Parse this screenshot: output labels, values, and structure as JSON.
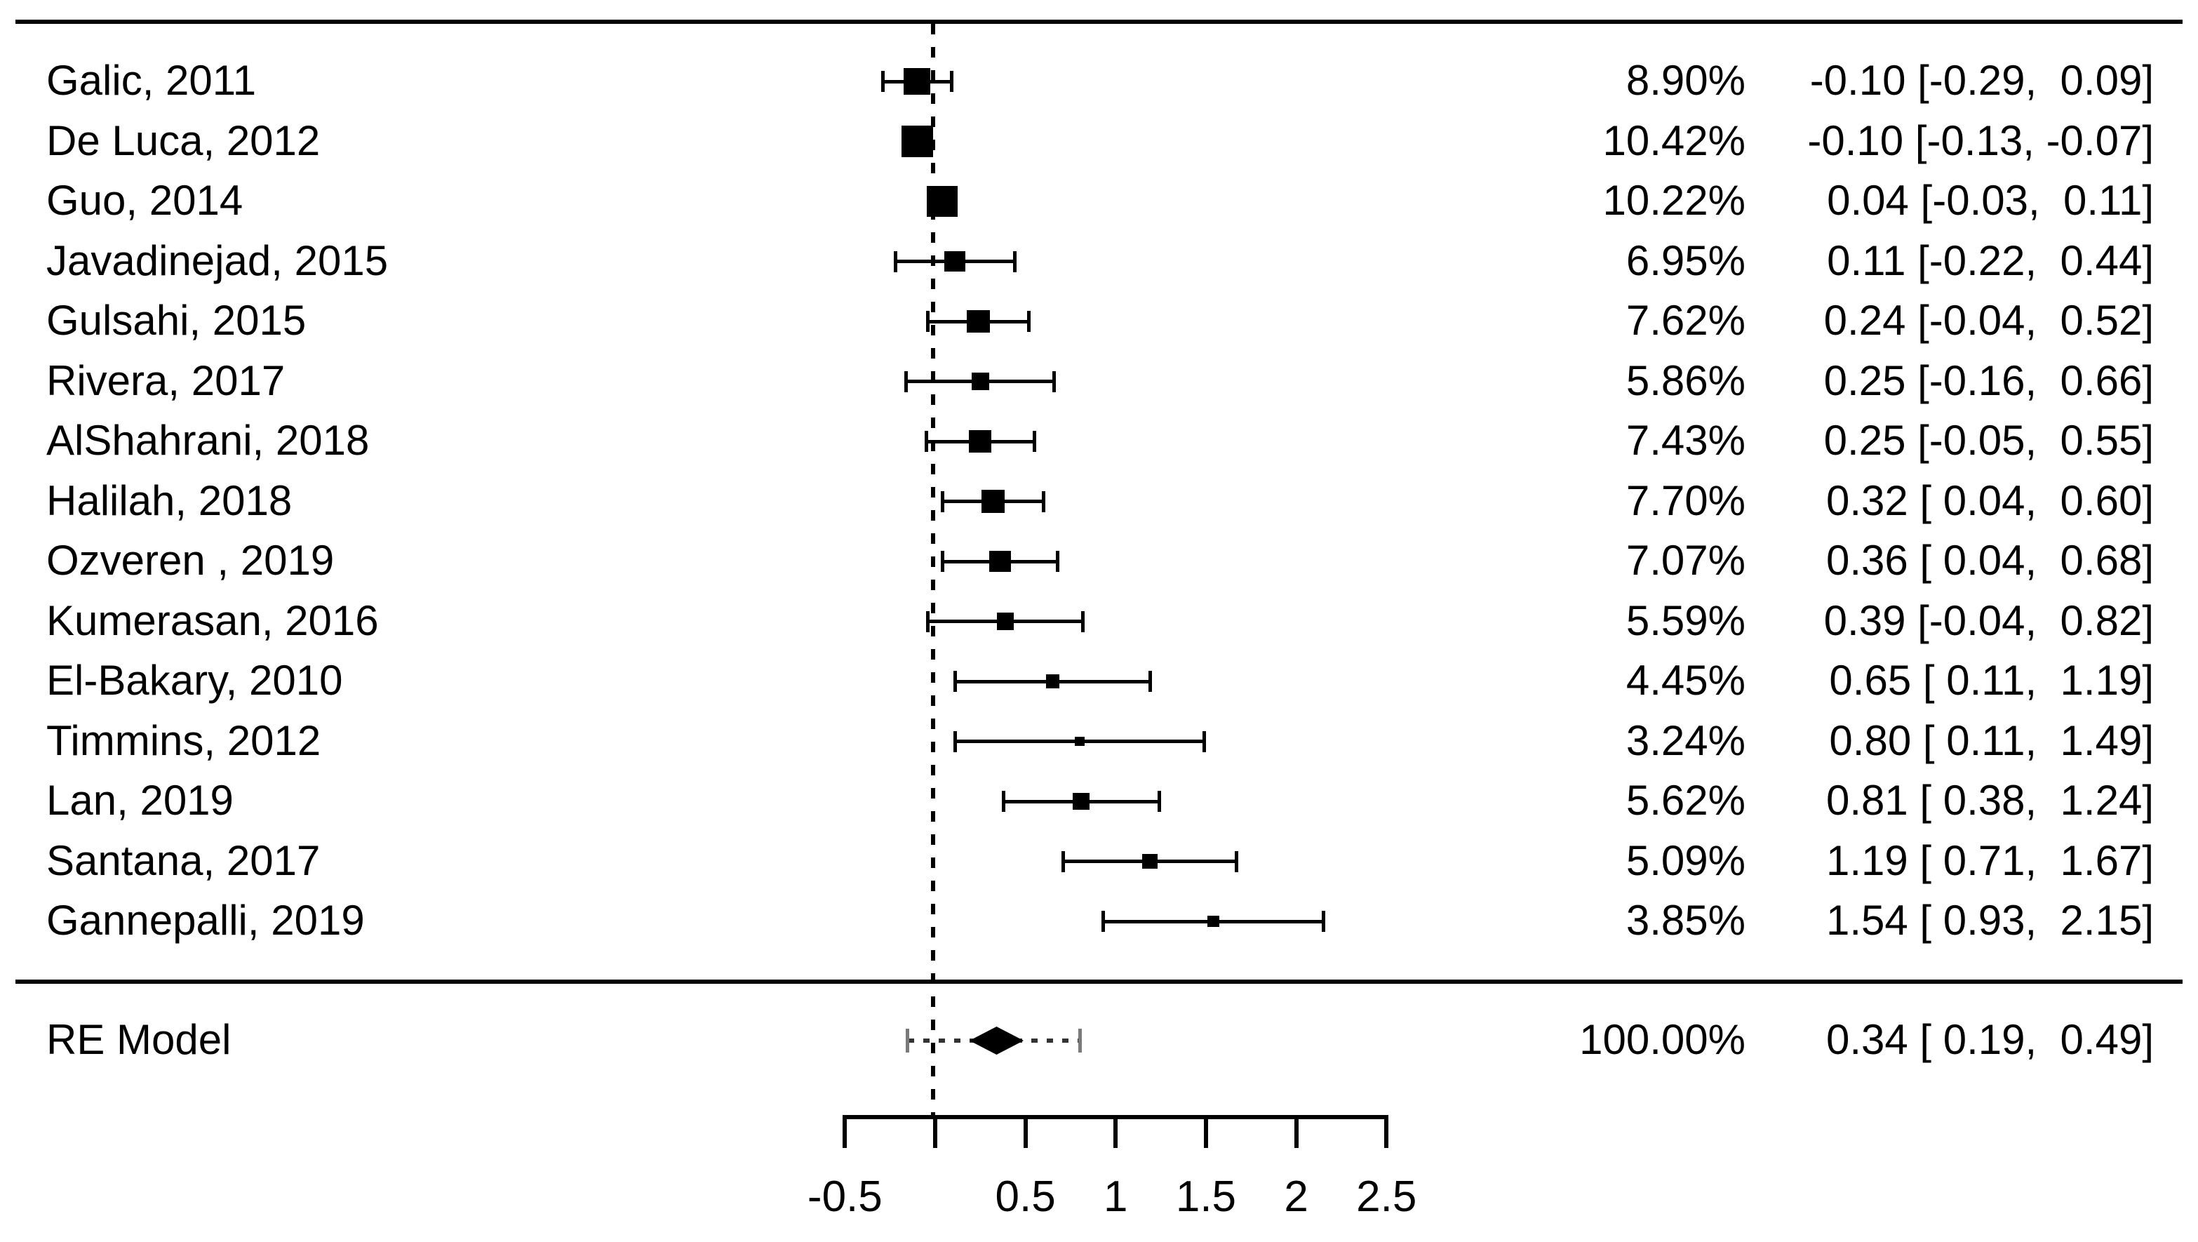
{
  "chart_data": {
    "type": "forest",
    "title": "",
    "x_axis": {
      "min": -0.5,
      "max": 2.5,
      "reference_line": 0,
      "ticks": [
        {
          "value": -0.5,
          "label": "-0.5"
        },
        {
          "value": 0,
          "label": ""
        },
        {
          "value": 0.5,
          "label": "0.5"
        },
        {
          "value": 1,
          "label": "1"
        },
        {
          "value": 1.5,
          "label": "1.5"
        },
        {
          "value": 2,
          "label": "2"
        },
        {
          "value": 2.5,
          "label": "2.5"
        }
      ]
    },
    "studies": [
      {
        "label": "Galic, 2011",
        "weight": "8.90%",
        "weight_value": 8.9,
        "estimate": -0.1,
        "ci_lower": -0.29,
        "ci_upper": 0.09,
        "estimate_label": "-0.10 [-0.29,  0.09]"
      },
      {
        "label": "De Luca, 2012",
        "weight": "10.42%",
        "weight_value": 10.42,
        "estimate": -0.1,
        "ci_lower": -0.13,
        "ci_upper": -0.07,
        "estimate_label": "-0.10 [-0.13, -0.07]"
      },
      {
        "label": "Guo, 2014",
        "weight": "10.22%",
        "weight_value": 10.22,
        "estimate": 0.04,
        "ci_lower": -0.03,
        "ci_upper": 0.11,
        "estimate_label": "0.04 [-0.03,  0.11]"
      },
      {
        "label": "Javadinejad, 2015",
        "weight": "6.95%",
        "weight_value": 6.95,
        "estimate": 0.11,
        "ci_lower": -0.22,
        "ci_upper": 0.44,
        "estimate_label": "0.11 [-0.22,  0.44]"
      },
      {
        "label": "Gulsahi, 2015",
        "weight": "7.62%",
        "weight_value": 7.62,
        "estimate": 0.24,
        "ci_lower": -0.04,
        "ci_upper": 0.52,
        "estimate_label": "0.24 [-0.04,  0.52]"
      },
      {
        "label": "Rivera, 2017",
        "weight": "5.86%",
        "weight_value": 5.86,
        "estimate": 0.25,
        "ci_lower": -0.16,
        "ci_upper": 0.66,
        "estimate_label": "0.25 [-0.16,  0.66]"
      },
      {
        "label": "AlShahrani, 2018",
        "weight": "7.43%",
        "weight_value": 7.43,
        "estimate": 0.25,
        "ci_lower": -0.05,
        "ci_upper": 0.55,
        "estimate_label": "0.25 [-0.05,  0.55]"
      },
      {
        "label": "Halilah, 2018",
        "weight": "7.70%",
        "weight_value": 7.7,
        "estimate": 0.32,
        "ci_lower": 0.04,
        "ci_upper": 0.6,
        "estimate_label": "0.32 [ 0.04,  0.60]"
      },
      {
        "label": "Ozveren , 2019",
        "weight": "7.07%",
        "weight_value": 7.07,
        "estimate": 0.36,
        "ci_lower": 0.04,
        "ci_upper": 0.68,
        "estimate_label": "0.36 [ 0.04,  0.68]"
      },
      {
        "label": "Kumerasan, 2016",
        "weight": "5.59%",
        "weight_value": 5.59,
        "estimate": 0.39,
        "ci_lower": -0.04,
        "ci_upper": 0.82,
        "estimate_label": "0.39 [-0.04,  0.82]"
      },
      {
        "label": "El-Bakary, 2010",
        "weight": "4.45%",
        "weight_value": 4.45,
        "estimate": 0.65,
        "ci_lower": 0.11,
        "ci_upper": 1.19,
        "estimate_label": "0.65 [ 0.11,  1.19]"
      },
      {
        "label": "Timmins, 2012",
        "weight": "3.24%",
        "weight_value": 3.24,
        "estimate": 0.8,
        "ci_lower": 0.11,
        "ci_upper": 1.49,
        "estimate_label": "0.80 [ 0.11,  1.49]"
      },
      {
        "label": "Lan, 2019",
        "weight": "5.62%",
        "weight_value": 5.62,
        "estimate": 0.81,
        "ci_lower": 0.38,
        "ci_upper": 1.24,
        "estimate_label": "0.81 [ 0.38,  1.24]"
      },
      {
        "label": "Santana, 2017",
        "weight": "5.09%",
        "weight_value": 5.09,
        "estimate": 1.19,
        "ci_lower": 0.71,
        "ci_upper": 1.67,
        "estimate_label": "1.19 [ 0.71,  1.67]"
      },
      {
        "label": "Gannepalli, 2019",
        "weight": "3.85%",
        "weight_value": 3.85,
        "estimate": 1.54,
        "ci_lower": 0.93,
        "ci_upper": 2.15,
        "estimate_label": "1.54 [ 0.93,  2.15]"
      }
    ],
    "summary": {
      "label": "RE Model",
      "weight": "100.00%",
      "estimate": 0.34,
      "ci_lower": 0.19,
      "ci_upper": 0.49,
      "estimate_label": "0.34 [ 0.19,  0.49]",
      "prediction_interval_lower": -0.15,
      "prediction_interval_upper": 0.8
    }
  }
}
